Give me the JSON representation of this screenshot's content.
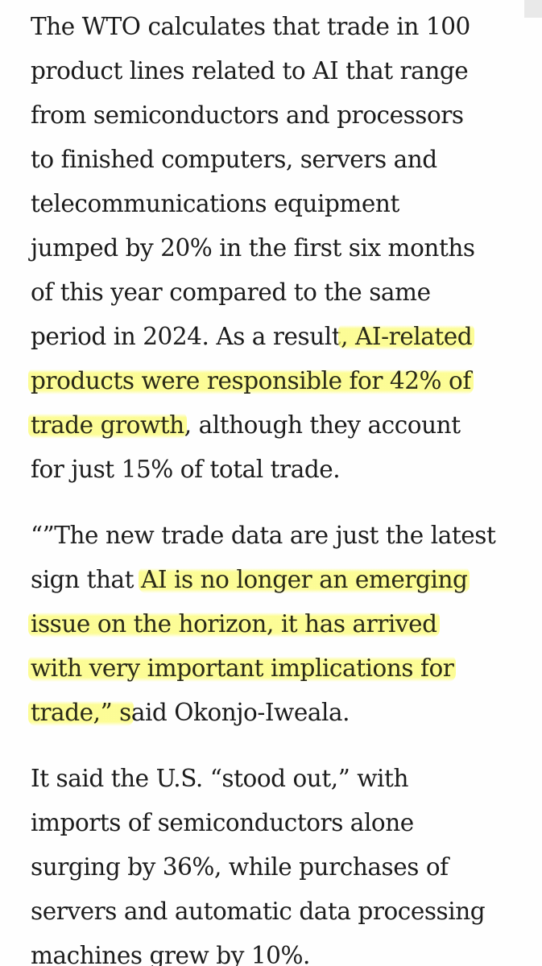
{
  "article": {
    "paragraphs": [
      {
        "lines": [
          {
            "pre": "The WTO calculates that trade in 100"
          },
          {
            "pre": "product lines related to AI that range"
          },
          {
            "pre": "from semiconductors and processors"
          },
          {
            "pre": "to finished computers, servers and"
          },
          {
            "pre": "telecommunications equipment"
          },
          {
            "pre": "jumped by 20% in the first six months"
          },
          {
            "pre": "of this year compared to the same"
          },
          {
            "pre": "period in 2024. As a result",
            "hl": ", AI-related"
          },
          {
            "hl": "products were responsible for 42% of"
          },
          {
            "hl": "trade growth",
            "post": ", although they account"
          },
          {
            "pre": "for just 15% of total trade."
          }
        ]
      },
      {
        "lines": [
          {
            "pre": "“”The new trade data are just the latest"
          },
          {
            "pre": "sign that ",
            "hl": "AI is no longer an emerging"
          },
          {
            "hl": "issue on the horizon, it has arrived"
          },
          {
            "hl": "with very important implications for"
          },
          {
            "hl": "trade,” s",
            "post": "aid Okonjo-Iweala."
          }
        ]
      },
      {
        "lines": [
          {
            "pre": "It said the U.S. “stood out,” with"
          },
          {
            "pre": "imports of semiconductors alone"
          },
          {
            "pre": "surging by 36%, while purchases of"
          },
          {
            "pre": "servers and automatic data processing"
          },
          {
            "pre": "machines grew by 10%."
          }
        ]
      }
    ]
  }
}
